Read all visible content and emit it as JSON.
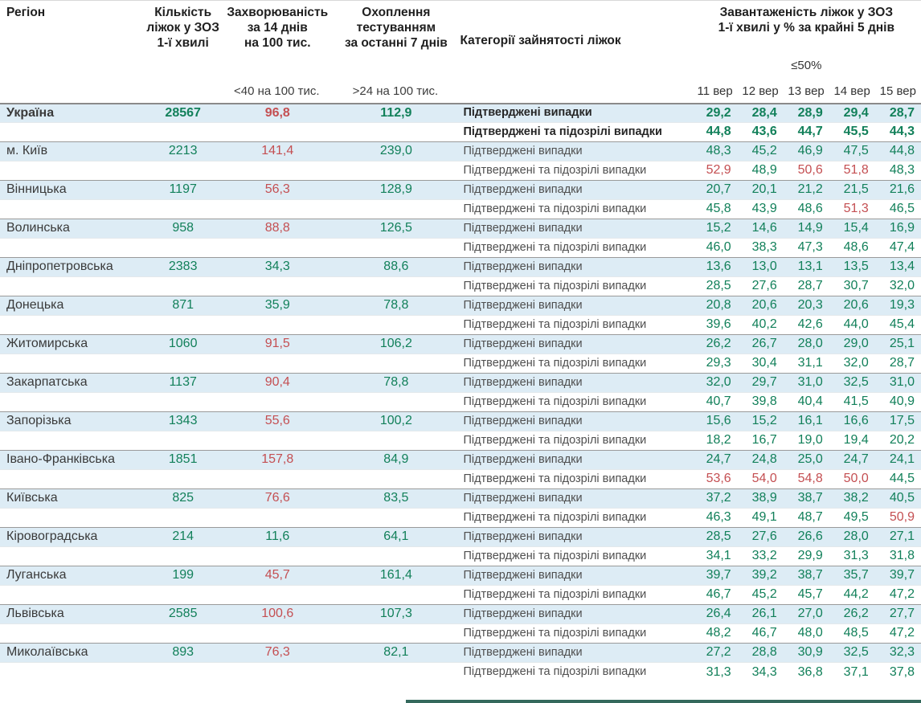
{
  "header": {
    "region": "Регіон",
    "beds": "Кількість\nліжок у ЗОЗ\n1-ї хвилі",
    "incidence": "Захворюваність\nза 14 днів\nна 100 тис.",
    "testing": "Охоплення\nтестуванням\nза останні 7 днів",
    "category": "Категорії зайнятості ліжок",
    "occupancy": "Завантаженість ліжок у ЗОЗ\n1-ї хвилі у % за крайні 5 днів",
    "occupancy_threshold": "≤50%",
    "incidence_threshold": "<40 на 100 тис.",
    "testing_threshold": ">24 на 100 тис.",
    "dates": [
      "11 вер",
      "12 вер",
      "13 вер",
      "14 вер",
      "15 вер"
    ]
  },
  "row_labels": [
    "Підтверджені випадки",
    "Підтверджені та підозрілі випадки"
  ],
  "colors": {
    "green": "#12805a",
    "red": "#c44f52",
    "row_highlight": "#ddecf5"
  },
  "color_rules": {
    "incidence_red_min": 40,
    "occupancy_red_min": 50
  },
  "regions": [
    {
      "name": "Україна",
      "bold": true,
      "beds": "28567",
      "incidence": "96,8",
      "testing": "112,9",
      "confirmed": [
        "29,2",
        "28,4",
        "28,9",
        "29,4",
        "28,7"
      ],
      "confirmed_suspected": [
        "44,8",
        "43,6",
        "44,7",
        "45,5",
        "44,3"
      ]
    },
    {
      "name": "м. Київ",
      "bold": false,
      "beds": "2213",
      "incidence": "141,4",
      "testing": "239,0",
      "confirmed": [
        "48,3",
        "45,2",
        "46,9",
        "47,5",
        "44,8"
      ],
      "confirmed_suspected": [
        "52,9",
        "48,9",
        "50,6",
        "51,8",
        "48,3"
      ]
    },
    {
      "name": "Вінницька",
      "bold": false,
      "beds": "1197",
      "incidence": "56,3",
      "testing": "128,9",
      "confirmed": [
        "20,7",
        "20,1",
        "21,2",
        "21,5",
        "21,6"
      ],
      "confirmed_suspected": [
        "45,8",
        "43,9",
        "48,6",
        "51,3",
        "46,5"
      ]
    },
    {
      "name": "Волинська",
      "bold": false,
      "beds": "958",
      "incidence": "88,8",
      "testing": "126,5",
      "confirmed": [
        "15,2",
        "14,6",
        "14,9",
        "15,4",
        "16,9"
      ],
      "confirmed_suspected": [
        "46,0",
        "38,3",
        "47,3",
        "48,6",
        "47,4"
      ]
    },
    {
      "name": "Дніпропетровська",
      "bold": false,
      "beds": "2383",
      "incidence": "34,3",
      "testing": "88,6",
      "confirmed": [
        "13,6",
        "13,0",
        "13,1",
        "13,5",
        "13,4"
      ],
      "confirmed_suspected": [
        "28,5",
        "27,6",
        "28,7",
        "30,7",
        "32,0"
      ]
    },
    {
      "name": "Донецька",
      "bold": false,
      "beds": "871",
      "incidence": "35,9",
      "testing": "78,8",
      "confirmed": [
        "20,8",
        "20,6",
        "20,3",
        "20,6",
        "19,3"
      ],
      "confirmed_suspected": [
        "39,6",
        "40,2",
        "42,6",
        "44,0",
        "45,4"
      ]
    },
    {
      "name": "Житомирська",
      "bold": false,
      "beds": "1060",
      "incidence": "91,5",
      "testing": "106,2",
      "confirmed": [
        "26,2",
        "26,7",
        "28,0",
        "29,0",
        "25,1"
      ],
      "confirmed_suspected": [
        "29,3",
        "30,4",
        "31,1",
        "32,0",
        "28,7"
      ]
    },
    {
      "name": "Закарпатська",
      "bold": false,
      "beds": "1137",
      "incidence": "90,4",
      "testing": "78,8",
      "confirmed": [
        "32,0",
        "29,7",
        "31,0",
        "32,5",
        "31,0"
      ],
      "confirmed_suspected": [
        "40,7",
        "39,8",
        "40,4",
        "41,5",
        "40,9"
      ]
    },
    {
      "name": "Запорізька",
      "bold": false,
      "beds": "1343",
      "incidence": "55,6",
      "testing": "100,2",
      "confirmed": [
        "15,6",
        "15,2",
        "16,1",
        "16,6",
        "17,5"
      ],
      "confirmed_suspected": [
        "18,2",
        "16,7",
        "19,0",
        "19,4",
        "20,2"
      ]
    },
    {
      "name": "Івано-Франківська",
      "bold": false,
      "beds": "1851",
      "incidence": "157,8",
      "testing": "84,9",
      "confirmed": [
        "24,7",
        "24,8",
        "25,0",
        "24,7",
        "24,1"
      ],
      "confirmed_suspected": [
        "53,6",
        "54,0",
        "54,8",
        "50,0",
        "44,5"
      ]
    },
    {
      "name": "Київська",
      "bold": false,
      "beds": "825",
      "incidence": "76,6",
      "testing": "83,5",
      "confirmed": [
        "37,2",
        "38,9",
        "38,7",
        "38,2",
        "40,5"
      ],
      "confirmed_suspected": [
        "46,3",
        "49,1",
        "48,7",
        "49,5",
        "50,9"
      ]
    },
    {
      "name": "Кіровоградська",
      "bold": false,
      "beds": "214",
      "incidence": "11,6",
      "testing": "64,1",
      "confirmed": [
        "28,5",
        "27,6",
        "26,6",
        "28,0",
        "27,1"
      ],
      "confirmed_suspected": [
        "34,1",
        "33,2",
        "29,9",
        "31,3",
        "31,8"
      ]
    },
    {
      "name": "Луганська",
      "bold": false,
      "beds": "199",
      "incidence": "45,7",
      "testing": "161,4",
      "confirmed": [
        "39,7",
        "39,2",
        "38,7",
        "35,7",
        "39,7"
      ],
      "confirmed_suspected": [
        "46,7",
        "45,2",
        "45,7",
        "44,2",
        "47,2"
      ]
    },
    {
      "name": "Львівська",
      "bold": false,
      "beds": "2585",
      "incidence": "100,6",
      "testing": "107,3",
      "confirmed": [
        "26,4",
        "26,1",
        "27,0",
        "26,2",
        "27,7"
      ],
      "confirmed_suspected": [
        "48,2",
        "46,7",
        "48,0",
        "48,5",
        "47,2"
      ]
    },
    {
      "name": "Миколаївська",
      "bold": false,
      "beds": "893",
      "incidence": "76,3",
      "testing": "82,1",
      "confirmed": [
        "27,2",
        "28,8",
        "30,9",
        "32,5",
        "32,3"
      ],
      "confirmed_suspected": [
        "31,3",
        "34,3",
        "36,8",
        "37,1",
        "37,8"
      ]
    }
  ]
}
